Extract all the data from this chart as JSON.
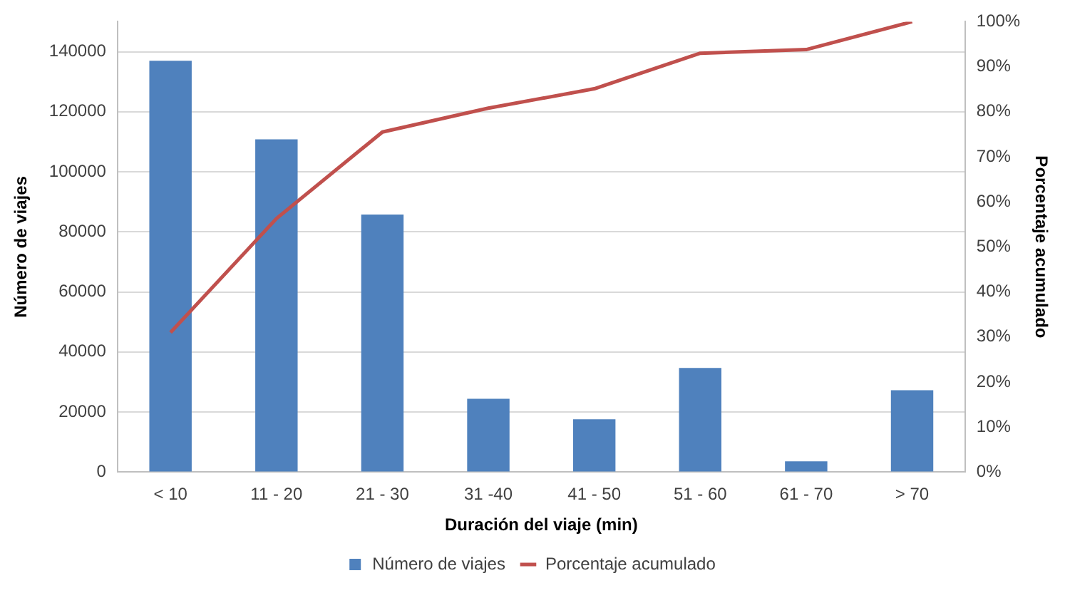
{
  "chart_data": {
    "type": "bar",
    "xlabel": "Duración del viaje (min)",
    "ylabel": "Número de viajes",
    "y2label": "Porcentaje acumulado",
    "categories": [
      "< 10",
      "11 - 20",
      "21 - 30",
      "31 -40",
      "41 - 50",
      "51 - 60",
      "61 - 70",
      "> 70"
    ],
    "series": [
      {
        "name": "Número de viajes",
        "color": "#4f81bd",
        "values": [
          137000,
          110800,
          85800,
          24400,
          17600,
          34700,
          3600,
          27300
        ]
      },
      {
        "name": "Porcentaje acumulado",
        "type": "line",
        "axis": "y2",
        "color": "#c0504d",
        "values": [
          31,
          56.3,
          75.5,
          80.8,
          85.1,
          93,
          93.8,
          100
        ]
      }
    ],
    "ylim": [
      0,
      150000
    ],
    "yticks": [
      0,
      20000,
      40000,
      60000,
      80000,
      100000,
      120000,
      140000
    ],
    "y2lim": [
      0,
      100
    ],
    "y2ticks": [
      {
        "value": 0,
        "label": "0%"
      },
      {
        "value": 10,
        "label": "10%"
      },
      {
        "value": 20,
        "label": "20%"
      },
      {
        "value": 30,
        "label": "30%"
      },
      {
        "value": 40,
        "label": "40%"
      },
      {
        "value": 50,
        "label": "50%"
      },
      {
        "value": 60,
        "label": "60%"
      },
      {
        "value": 70,
        "label": "70%"
      },
      {
        "value": 80,
        "label": "80%"
      },
      {
        "value": 90,
        "label": "90%"
      },
      {
        "value": 100,
        "label": "100%"
      }
    ],
    "grid": "y",
    "legend": "bottom",
    "marker": "none"
  }
}
